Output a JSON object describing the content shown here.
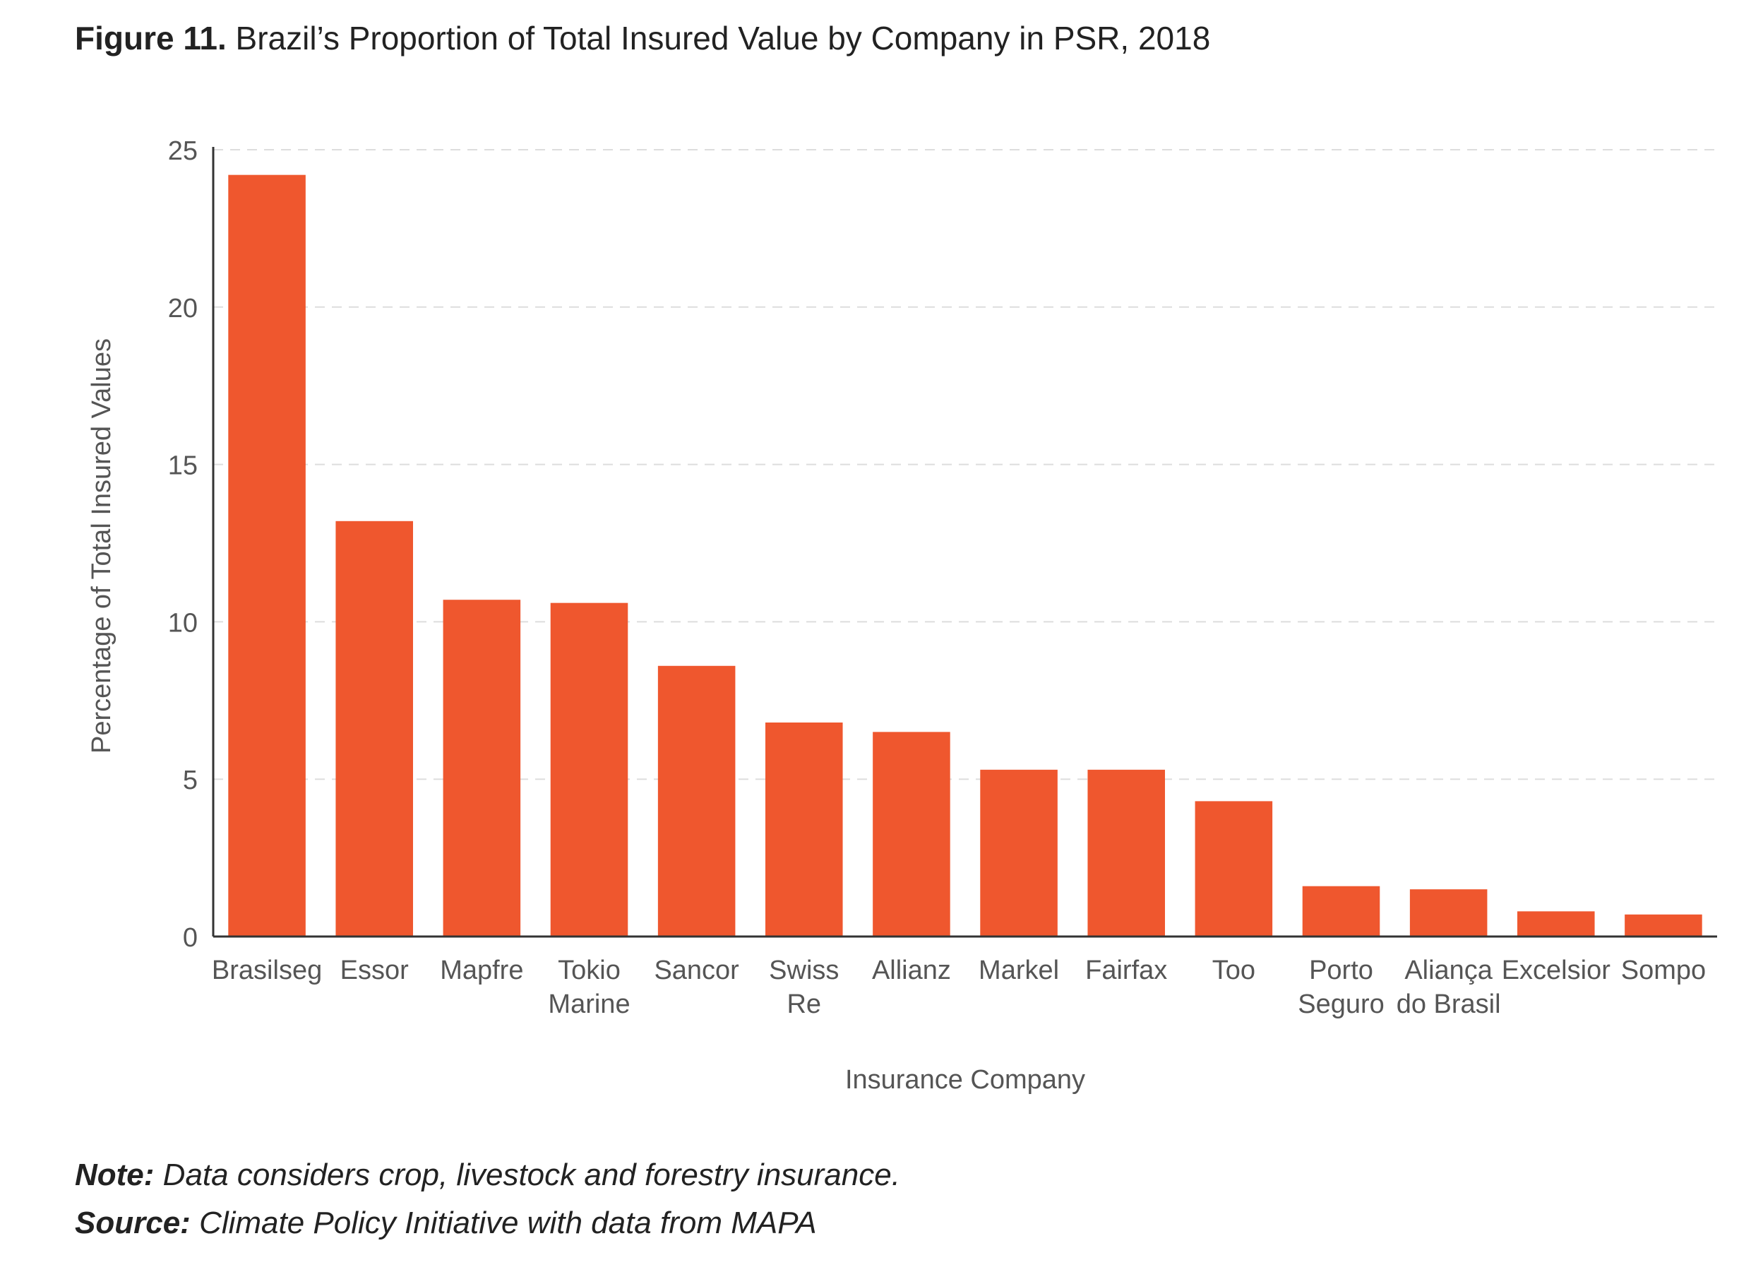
{
  "figure": {
    "label": "Figure 11.",
    "title": "Brazil’s Proportion of Total Insured Value by Company in PSR, 2018"
  },
  "notes": {
    "note_label": "Note:",
    "note_text": "Data considers crop, livestock and forestry insurance.",
    "source_label": "Source:",
    "source_text": "Climate Policy Initiative with data from MAPA"
  },
  "colors": {
    "bar": "#ef572e",
    "axis": "#333333",
    "grid": "#dddddd",
    "text": "#555555"
  },
  "chart_data": {
    "type": "bar",
    "title": "",
    "xlabel": "Insurance Company",
    "ylabel": "Percentage of Total Insured Values",
    "ylim": [
      0,
      25
    ],
    "yticks": [
      0,
      5,
      10,
      15,
      20,
      25
    ],
    "grid": "horizontal dashed",
    "legend": "none",
    "categories": [
      [
        "Brasilseg"
      ],
      [
        "Essor"
      ],
      [
        "Mapfre"
      ],
      [
        "Tokio",
        "Marine"
      ],
      [
        "Sancor"
      ],
      [
        "Swiss",
        "Re"
      ],
      [
        "Allianz"
      ],
      [
        "Markel"
      ],
      [
        "Fairfax"
      ],
      [
        "Too"
      ],
      [
        "Porto",
        "Seguro"
      ],
      [
        "Aliança",
        "do Brasil"
      ],
      [
        "Excelsior"
      ],
      [
        "Sompo"
      ]
    ],
    "values": [
      24.2,
      13.2,
      10.7,
      10.6,
      8.6,
      6.8,
      6.5,
      5.3,
      5.3,
      4.3,
      1.6,
      1.5,
      0.8,
      0.7
    ]
  }
}
